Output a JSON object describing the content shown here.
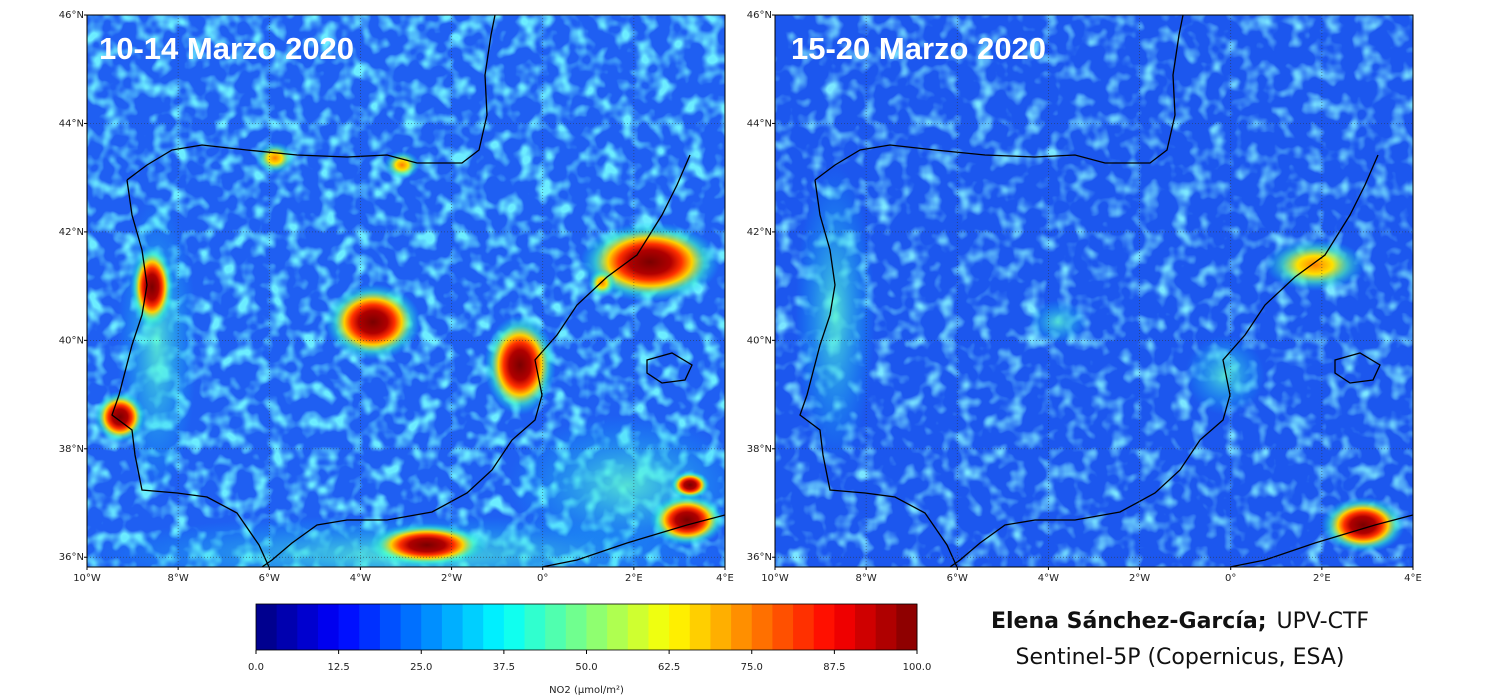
{
  "panels": [
    {
      "title": "10-14 Marzo 2020"
    },
    {
      "title": "15-20 Marzo 2020"
    }
  ],
  "map_axes": {
    "lonlim": [
      -10,
      4
    ],
    "latlim": [
      35.82,
      46
    ],
    "grid": true,
    "xticks": [
      {
        "value": -10,
        "label": "10°W"
      },
      {
        "value": -8,
        "label": "8°W"
      },
      {
        "value": -6,
        "label": "6°W"
      },
      {
        "value": -4,
        "label": "4°W"
      },
      {
        "value": -2,
        "label": "2°W"
      },
      {
        "value": 0,
        "label": "0°"
      },
      {
        "value": 2,
        "label": "2°E"
      },
      {
        "value": 4,
        "label": "4°E"
      }
    ],
    "yticks": [
      {
        "value": 36,
        "label": "36°N"
      },
      {
        "value": 38,
        "label": "38°N"
      },
      {
        "value": 40,
        "label": "40°N"
      },
      {
        "value": 42,
        "label": "42°N"
      },
      {
        "value": 44,
        "label": "44°N"
      },
      {
        "value": 46,
        "label": "46°N"
      }
    ]
  },
  "colorbar": {
    "lim": [
      0,
      100
    ],
    "colormap": "jet",
    "label": "NO2 (μmol/m²)",
    "ticks": [
      {
        "value": 0,
        "label": "0.0"
      },
      12.5,
      {
        "value": 25,
        "label": "25.0"
      },
      37.5,
      {
        "value": 50,
        "label": "50.0"
      },
      62.5,
      {
        "value": 75,
        "label": "75.0"
      },
      87.5,
      {
        "value": 100,
        "label": "100.0"
      }
    ]
  },
  "credits": {
    "author": "Elena Sánchez-García;",
    "affiliation": "UPV-CTF",
    "source": "Sentinel-5P (Copernicus, ESA)"
  }
}
